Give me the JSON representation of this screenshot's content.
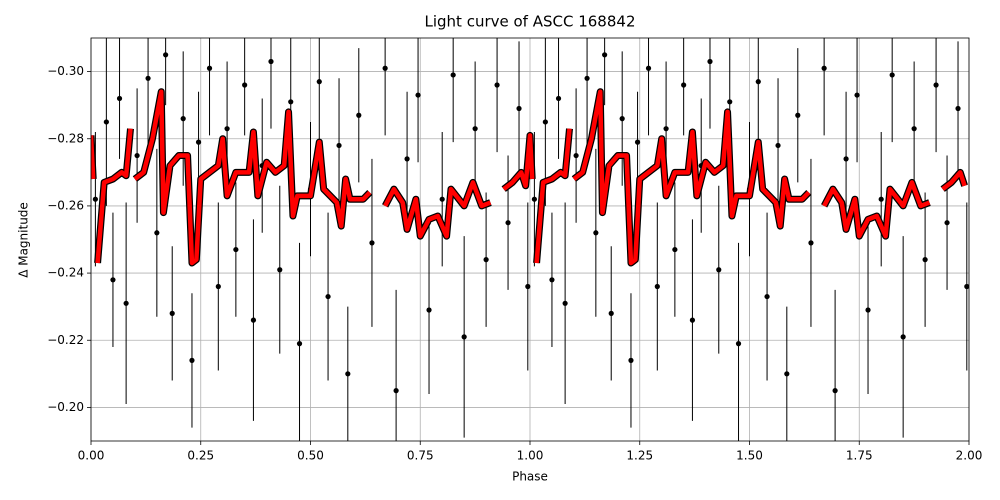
{
  "chart_data": {
    "type": "errorbar",
    "title": "Light curve of ASCC 168842",
    "xlabel": "Phase",
    "ylabel": "Δ Magnitude",
    "xlim": [
      0,
      2
    ],
    "ylim": [
      -0.19,
      -0.31
    ],
    "grid": true,
    "xticks": [
      {
        "value": 0,
        "label": "0.00"
      },
      {
        "value": 0.25,
        "label": "0.25"
      },
      {
        "value": 0.5,
        "label": "0.50"
      },
      {
        "value": 0.75,
        "label": "0.75"
      },
      {
        "value": 1,
        "label": "1.00"
      },
      {
        "value": 1.25,
        "label": "1.25"
      },
      {
        "value": 1.5,
        "label": "1.50"
      },
      {
        "value": 1.75,
        "label": "1.75"
      },
      {
        "value": 2,
        "label": "2.00"
      }
    ],
    "yticks": [
      {
        "value": -0.3,
        "label": "−0.30"
      },
      {
        "value": -0.28,
        "label": "−0.28"
      },
      {
        "value": -0.26,
        "label": "−0.26"
      },
      {
        "value": -0.24,
        "label": "−0.24"
      },
      {
        "value": -0.22,
        "label": "−0.22"
      },
      {
        "value": -0.2,
        "label": "−0.20"
      }
    ],
    "series": [
      {
        "color": "#000000",
        "x": [
          0.01,
          0.035,
          0.05,
          0.065,
          0.08,
          0.105,
          0.13,
          0.15,
          0.17,
          0.185,
          0.21,
          0.23,
          0.245,
          0.27,
          0.29,
          0.31,
          0.33,
          0.35,
          0.37,
          0.39,
          0.41,
          0.43,
          0.455,
          0.475,
          0.5,
          0.52,
          0.54,
          0.565,
          0.585,
          0.61,
          0.64,
          0.67,
          0.695,
          0.72,
          0.745,
          0.77,
          0.8,
          0.825,
          0.85,
          0.875,
          0.9,
          0.925,
          0.95,
          0.975,
          0.995,
          1.01,
          1.035,
          1.05,
          1.065,
          1.08,
          1.105,
          1.13,
          1.15,
          1.17,
          1.185,
          1.21,
          1.23,
          1.245,
          1.27,
          1.29,
          1.31,
          1.33,
          1.35,
          1.37,
          1.39,
          1.41,
          1.43,
          1.455,
          1.475,
          1.5,
          1.52,
          1.54,
          1.565,
          1.585,
          1.61,
          1.64,
          1.67,
          1.695,
          1.72,
          1.745,
          1.77,
          1.8,
          1.825,
          1.85,
          1.875,
          1.9,
          1.925,
          1.95,
          1.975,
          1.995
        ],
        "values": [
          -0.262,
          -0.285,
          -0.238,
          -0.292,
          -0.231,
          -0.275,
          -0.298,
          -0.252,
          -0.305,
          -0.228,
          -0.286,
          -0.214,
          -0.279,
          -0.301,
          -0.236,
          -0.283,
          -0.247,
          -0.296,
          -0.226,
          -0.272,
          -0.303,
          -0.241,
          -0.291,
          -0.219,
          -0.265,
          -0.297,
          -0.233,
          -0.278,
          -0.21,
          -0.287,
          -0.249,
          -0.301,
          -0.205,
          -0.274,
          -0.293,
          -0.229,
          -0.262,
          -0.299,
          -0.221,
          -0.283,
          -0.244,
          -0.296,
          -0.255,
          -0.289,
          -0.236,
          -0.262,
          -0.285,
          -0.238,
          -0.292,
          -0.231,
          -0.275,
          -0.298,
          -0.252,
          -0.305,
          -0.228,
          -0.286,
          -0.214,
          -0.279,
          -0.301,
          -0.236,
          -0.283,
          -0.247,
          -0.296,
          -0.226,
          -0.272,
          -0.303,
          -0.241,
          -0.291,
          -0.219,
          -0.265,
          -0.297,
          -0.233,
          -0.278,
          -0.21,
          -0.287,
          -0.249,
          -0.301,
          -0.205,
          -0.274,
          -0.293,
          -0.229,
          -0.262,
          -0.299,
          -0.221,
          -0.283,
          -0.244,
          -0.296,
          -0.255,
          -0.289,
          -0.236
        ],
        "errors": [
          0.02,
          0.025,
          0.02,
          0.018,
          0.03,
          0.02,
          0.02,
          0.025,
          0.015,
          0.02,
          0.02,
          0.02,
          0.015,
          0.02,
          0.025,
          0.02,
          0.02,
          0.015,
          0.03,
          0.02,
          0.02,
          0.025,
          0.02,
          0.03,
          0.02,
          0.02,
          0.025,
          0.02,
          0.02,
          0.02,
          0.025,
          0.02,
          0.03,
          0.02,
          0.02,
          0.025,
          0.02,
          0.02,
          0.03,
          0.02,
          0.02,
          0.02,
          0.02,
          0.02,
          0.025,
          0.02,
          0.025,
          0.02,
          0.018,
          0.03,
          0.02,
          0.02,
          0.025,
          0.015,
          0.02,
          0.02,
          0.02,
          0.015,
          0.02,
          0.025,
          0.02,
          0.02,
          0.015,
          0.03,
          0.02,
          0.02,
          0.025,
          0.02,
          0.03,
          0.02,
          0.02,
          0.025,
          0.02,
          0.02,
          0.02,
          0.025,
          0.02,
          0.03,
          0.02,
          0.02,
          0.025,
          0.02,
          0.02,
          0.03,
          0.02,
          0.02,
          0.02,
          0.02,
          0.02,
          0.025
        ]
      },
      {
        "color": "#ff0000",
        "kind": "line",
        "x": [
          0,
          0.005,
          0.01,
          0.015,
          0.03,
          0.05,
          0.07,
          0.08,
          0.09,
          0.095,
          0.1,
          0.12,
          0.14,
          0.16,
          0.165,
          0.18,
          0.2,
          0.22,
          0.23,
          0.24,
          0.25,
          0.27,
          0.29,
          0.3,
          0.31,
          0.33,
          0.36,
          0.37,
          0.38,
          0.4,
          0.42,
          0.44,
          0.45,
          0.46,
          0.47,
          0.5,
          0.52,
          0.53,
          0.56,
          0.57,
          0.58,
          0.59,
          0.62,
          0.635,
          0.65,
          0.67,
          0.69,
          0.71,
          0.72,
          0.74,
          0.75,
          0.77,
          0.79,
          0.81,
          0.82,
          0.85,
          0.87,
          0.89,
          0.91,
          0.925,
          0.94,
          0.96,
          0.98,
          0.99,
          1,
          1.005,
          1.01,
          1.015,
          1.03,
          1.05,
          1.07,
          1.08,
          1.09,
          1.095,
          1.1,
          1.12,
          1.14,
          1.16,
          1.165,
          1.18,
          1.2,
          1.22,
          1.23,
          1.24,
          1.25,
          1.27,
          1.29,
          1.3,
          1.31,
          1.33,
          1.36,
          1.37,
          1.38,
          1.4,
          1.42,
          1.44,
          1.45,
          1.46,
          1.47,
          1.5,
          1.52,
          1.53,
          1.56,
          1.57,
          1.58,
          1.59,
          1.62,
          1.635,
          1.65,
          1.67,
          1.69,
          1.71,
          1.72,
          1.74,
          1.75,
          1.77,
          1.79,
          1.81,
          1.82,
          1.85,
          1.87,
          1.89,
          1.91,
          1.925,
          1.94,
          1.96,
          1.98,
          1.99
        ],
        "values": [
          -0.281,
          -0.268,
          null,
          -0.243,
          -0.267,
          -0.268,
          -0.27,
          -0.269,
          -0.283,
          null,
          -0.268,
          -0.27,
          -0.28,
          -0.294,
          -0.258,
          -0.272,
          -0.275,
          -0.275,
          -0.243,
          -0.244,
          -0.268,
          -0.27,
          -0.272,
          -0.28,
          -0.263,
          -0.27,
          -0.27,
          -0.282,
          -0.263,
          -0.273,
          -0.27,
          -0.272,
          -0.288,
          -0.257,
          -0.263,
          -0.263,
          -0.279,
          -0.265,
          -0.261,
          -0.254,
          -0.268,
          -0.262,
          -0.262,
          -0.264,
          null,
          -0.26,
          -0.265,
          -0.261,
          -0.253,
          -0.262,
          -0.251,
          -0.256,
          -0.257,
          -0.251,
          -0.265,
          -0.26,
          -0.267,
          -0.26,
          -0.261,
          null,
          -0.265,
          -0.267,
          -0.27,
          -0.266,
          -0.281,
          -0.268,
          null,
          -0.243,
          -0.267,
          -0.268,
          -0.27,
          -0.269,
          -0.283,
          null,
          -0.268,
          -0.27,
          -0.28,
          -0.294,
          -0.258,
          -0.272,
          -0.275,
          -0.275,
          -0.243,
          -0.244,
          -0.268,
          -0.27,
          -0.272,
          -0.28,
          -0.263,
          -0.27,
          -0.27,
          -0.282,
          -0.263,
          -0.273,
          -0.27,
          -0.272,
          -0.288,
          -0.257,
          -0.263,
          -0.263,
          -0.279,
          -0.265,
          -0.261,
          -0.254,
          -0.268,
          -0.262,
          -0.262,
          -0.264,
          null,
          -0.26,
          -0.265,
          -0.261,
          -0.253,
          -0.262,
          -0.251,
          -0.256,
          -0.257,
          -0.251,
          -0.265,
          -0.26,
          -0.267,
          -0.26,
          -0.261,
          null,
          -0.265,
          -0.267,
          -0.27,
          -0.266
        ]
      }
    ]
  }
}
